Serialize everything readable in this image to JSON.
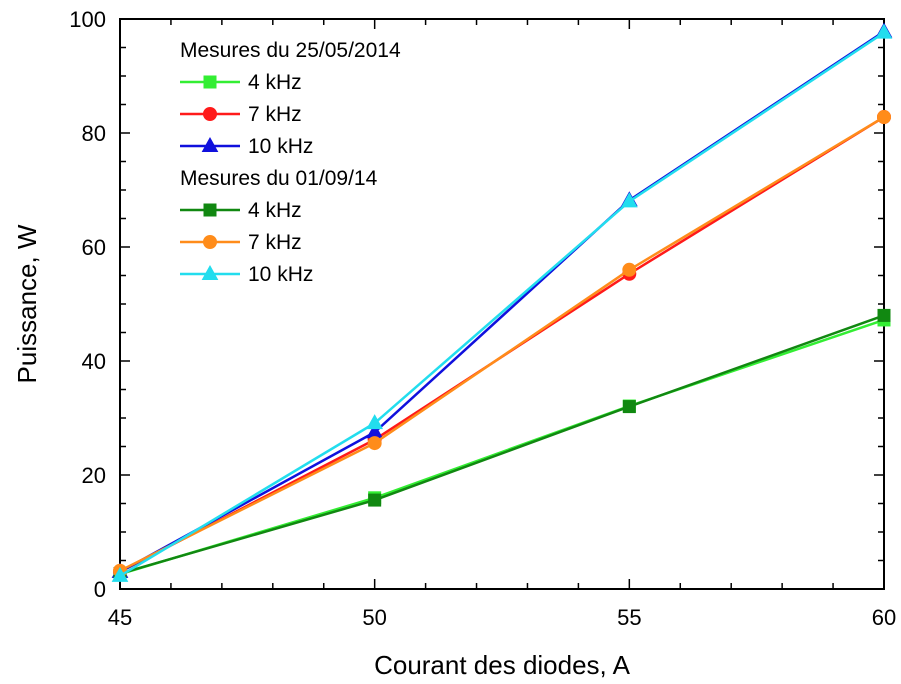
{
  "chart_data": {
    "type": "line",
    "xlabel": "Courant des diodes, A",
    "ylabel": "Puissance, W",
    "xlim": [
      45,
      60
    ],
    "ylim": [
      0,
      100
    ],
    "x_ticks": [
      45,
      50,
      55,
      60
    ],
    "y_ticks": [
      0,
      20,
      40,
      60,
      80,
      100
    ],
    "x_minor_step": 1,
    "y_minor_step": 5,
    "grid": false,
    "legend_placement": "top-left",
    "legend_groups": [
      {
        "title": "Mesures du 25/05/2014",
        "series": [
          {
            "name": "4 kHz",
            "color": "#33ee33",
            "marker": "square",
            "x": [
              45,
              50,
              55,
              60
            ],
            "values": [
              2.6,
              16.0,
              32.1,
              47.2
            ]
          },
          {
            "name": "7 kHz",
            "color": "#ff1a1a",
            "marker": "circle",
            "x": [
              45,
              50,
              55,
              60
            ],
            "values": [
              3.0,
              26.2,
              55.3,
              82.8
            ]
          },
          {
            "name": "10 kHz",
            "color": "#1010dd",
            "marker": "triangle",
            "x": [
              45,
              50,
              55,
              60
            ],
            "values": [
              3.0,
              27.5,
              68.2,
              97.8
            ]
          }
        ]
      },
      {
        "title": "Mesures du 01/09/14",
        "series": [
          {
            "name": "4 kHz",
            "color": "#118811",
            "marker": "square",
            "x": [
              45,
              50,
              55,
              60
            ],
            "values": [
              2.7,
              15.6,
              32.0,
              48.0
            ]
          },
          {
            "name": "7 kHz",
            "color": "#ff8c1a",
            "marker": "circle",
            "x": [
              45,
              50,
              55,
              60
            ],
            "values": [
              3.2,
              25.6,
              56.0,
              82.8
            ]
          },
          {
            "name": "10 kHz",
            "color": "#22ddee",
            "marker": "triangle",
            "x": [
              45,
              50,
              55,
              60
            ],
            "values": [
              2.3,
              29.1,
              68.0,
              97.6
            ]
          }
        ]
      }
    ]
  }
}
